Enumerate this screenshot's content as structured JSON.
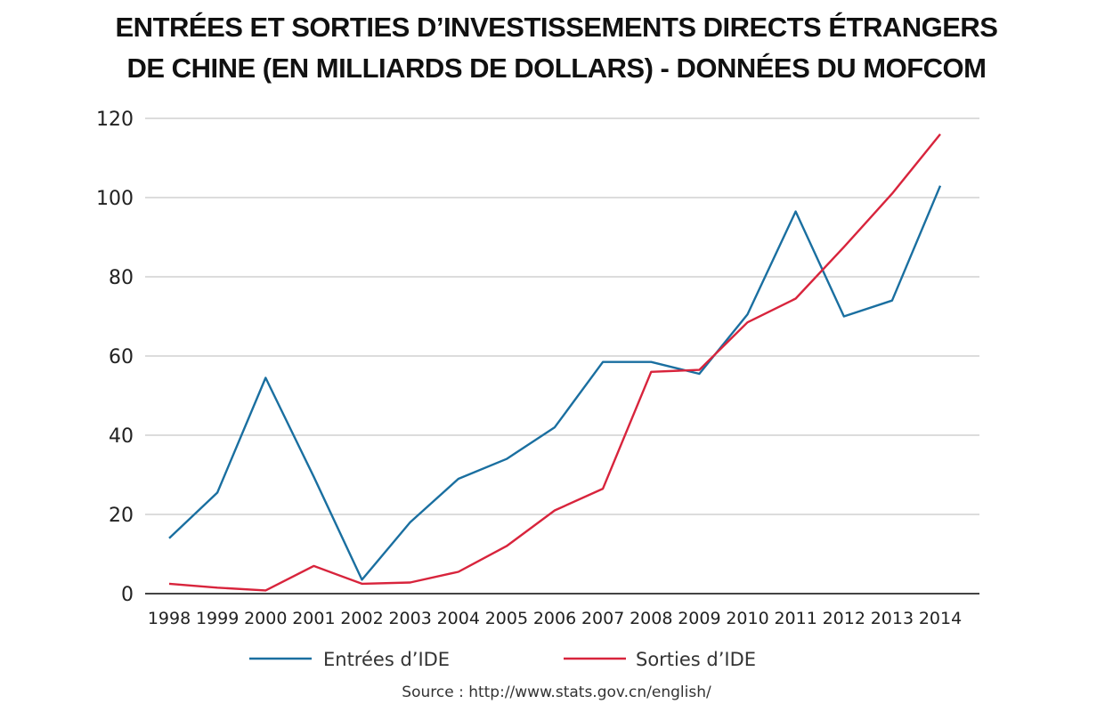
{
  "title_line1": "ENTRÉES ET SORTIES D’INVESTISSEMENTS DIRECTS ÉTRANGERS",
  "title_line2": "DE  CHINE (EN MILLIARDS DE DOLLARS) - DONNÉES DU MOFCOM",
  "source": "Source : http://www.stats.gov.cn/english/",
  "chart_data": {
    "type": "line",
    "title": "ENTRÉES ET SORTIES D’INVESTISSEMENTS DIRECTS ÉTRANGERS DE  CHINE (EN MILLIARDS DE DOLLARS) - DONNÉES DU MOFCOM",
    "xlabel": "",
    "ylabel": "",
    "x": [
      "1998",
      "1999",
      "2000",
      "2001",
      "2002",
      "2003",
      "2004",
      "2005",
      "2006",
      "2007",
      "2008",
      "2009",
      "2010",
      "2011",
      "2012",
      "2013",
      "2014"
    ],
    "ylim": [
      0,
      120
    ],
    "yticks": [
      "0",
      "20",
      "40",
      "60",
      "80",
      "100",
      "120"
    ],
    "grid": true,
    "legend_position": "bottom",
    "series": [
      {
        "name": "Entrées d’IDE",
        "color": "#1a6fa0",
        "values": [
          14,
          25.5,
          54.5,
          29.5,
          3.5,
          18,
          29,
          34,
          42,
          58.5,
          58.5,
          55.5,
          70.5,
          96.5,
          70,
          74,
          103
        ]
      },
      {
        "name": "Sorties d’IDE",
        "color": "#d8243c",
        "values": [
          2.5,
          1.5,
          0.8,
          7,
          2.5,
          2.8,
          5.5,
          12,
          21,
          26.5,
          56,
          56.5,
          68.5,
          74.5,
          87.5,
          101,
          116
        ]
      }
    ]
  }
}
